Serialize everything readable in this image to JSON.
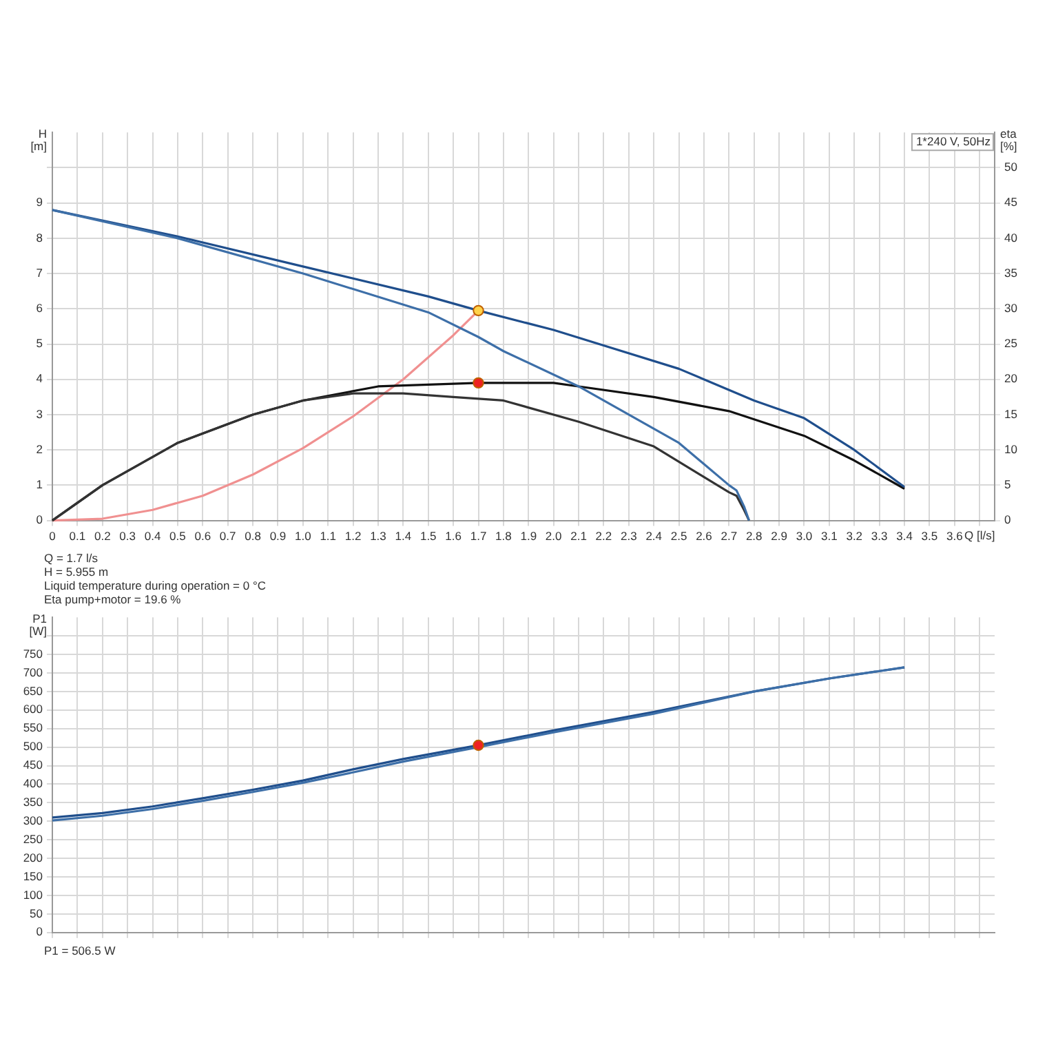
{
  "chart_data": [
    {
      "type": "line",
      "subtitle": "1*240 V, 50Hz",
      "xlabel": "Q [l/s]",
      "ylabel": "H [m]",
      "y2label": "eta [%]",
      "xlim": [
        0,
        3.76
      ],
      "xticks": [
        0,
        0.1,
        0.2,
        0.3,
        0.4,
        0.5,
        0.6,
        0.7,
        0.8,
        0.9,
        {
          "value": 1,
          "label": "1.0"
        },
        1.1,
        1.2,
        1.3,
        1.4,
        1.5,
        1.6,
        1.7,
        1.8,
        1.9,
        {
          "value": 2,
          "label": "2.0"
        },
        2.1,
        2.2,
        2.3,
        2.4,
        2.5,
        2.6,
        2.7,
        2.8,
        2.9,
        {
          "value": 3,
          "label": "3.0"
        },
        3.1,
        3.2,
        3.3,
        3.4,
        3.5,
        3.6,
        {
          "value": 3.7,
          "label": null
        }
      ],
      "ylim": [
        0,
        11
      ],
      "yticks": [
        0,
        1,
        2,
        3,
        4,
        5,
        6,
        7,
        8,
        9,
        {
          "value": 10,
          "label": null
        }
      ],
      "y2lim": [
        0,
        55
      ],
      "y2ticks": [
        0,
        5,
        10,
        15,
        20,
        25,
        30,
        35,
        40,
        45,
        50
      ],
      "grid": true,
      "legend": false,
      "line_style": "solid",
      "annotations": [
        "Q = 1.7 l/s",
        "H = 5.955 m",
        "Liquid temperature during operation = 0 °C",
        "Eta pump+motor = 19.6 %"
      ],
      "series": [
        {
          "type": "line",
          "color": "#3d6fa8",
          "x": [
            0,
            0.5,
            1.0,
            1.5,
            1.7,
            1.8,
            2.1,
            2.5,
            2.7,
            2.73,
            2.76,
            2.78
          ],
          "values": [
            8.8,
            8.0,
            7.0,
            5.9,
            5.2,
            4.8,
            3.8,
            2.2,
            1.0,
            0.85,
            0.4,
            0
          ]
        },
        {
          "type": "line",
          "color": "#1f4e8c",
          "x": [
            0,
            0.5,
            1.0,
            1.5,
            1.7,
            2.0,
            2.5,
            2.8,
            3.0,
            3.2,
            3.4
          ],
          "values": [
            8.8,
            8.05,
            7.2,
            6.35,
            5.95,
            5.4,
            4.3,
            3.4,
            2.9,
            2.0,
            0.95
          ]
        },
        {
          "type": "line",
          "axis": "y2",
          "color": "#333333",
          "x": [
            0,
            0.2,
            0.5,
            0.8,
            1.0,
            1.2,
            1.4,
            1.6,
            1.8,
            2.1,
            2.4,
            2.7,
            2.73,
            2.76,
            2.78
          ],
          "values": [
            0,
            5,
            11,
            15,
            17,
            18,
            18,
            17.5,
            17,
            14,
            10.5,
            4,
            3.5,
            1.5,
            0
          ]
        },
        {
          "type": "line",
          "axis": "y2",
          "color": "#111111",
          "x": [
            0,
            0.2,
            0.5,
            0.8,
            1.0,
            1.3,
            1.7,
            2.0,
            2.1,
            2.4,
            2.7,
            3.0,
            3.2,
            3.4
          ],
          "values": [
            0,
            5,
            11,
            15,
            17,
            19,
            19.5,
            19.5,
            19,
            17.5,
            15.5,
            12,
            8.5,
            4.5
          ]
        },
        {
          "type": "line",
          "color": "#f09090",
          "x": [
            0,
            0.2,
            0.4,
            0.6,
            0.8,
            1.0,
            1.2,
            1.4,
            1.6,
            1.7
          ],
          "values": [
            0,
            0.05,
            0.3,
            0.7,
            1.3,
            2.05,
            2.95,
            4.0,
            5.25,
            5.95
          ]
        },
        {
          "type": "scatter",
          "marker": "circle",
          "color": "#ffd24a",
          "x": [
            1.7
          ],
          "values": [
            5.95
          ]
        },
        {
          "type": "scatter",
          "marker": "circle",
          "axis": "y2",
          "color": "#ee2222",
          "x": [
            1.7
          ],
          "values": [
            19.5
          ]
        }
      ]
    },
    {
      "type": "line",
      "ylabel": "P1 [W]",
      "tick_labels": "y",
      "xlim": [
        0,
        3.76
      ],
      "xticks": [
        0,
        0.1,
        0.2,
        0.3,
        0.4,
        0.5,
        0.6,
        0.7,
        0.8,
        0.9,
        1,
        1.1,
        1.2,
        1.3,
        1.4,
        1.5,
        1.6,
        1.7,
        1.8,
        1.9,
        2,
        2.1,
        2.2,
        2.3,
        2.4,
        2.5,
        2.6,
        2.7,
        2.8,
        2.9,
        3,
        3.1,
        3.2,
        3.3,
        3.4,
        3.5,
        3.6,
        3.7
      ],
      "ylim": [
        0,
        850
      ],
      "yticks": [
        0,
        50,
        100,
        150,
        200,
        250,
        300,
        350,
        400,
        450,
        500,
        550,
        600,
        650,
        700,
        750,
        {
          "value": 800,
          "label": null
        }
      ],
      "grid": true,
      "legend": false,
      "line_style": "solid",
      "annotations": [
        "P1 = 506.5 W"
      ],
      "series": [
        {
          "type": "line",
          "color": "#3d6fa8",
          "x": [
            0,
            0.2,
            0.4,
            0.6,
            0.8,
            1.0,
            1.2,
            1.4,
            1.7,
            2.0,
            2.4,
            2.8,
            3.1,
            3.4
          ],
          "values": [
            302,
            315,
            333,
            355,
            379,
            404,
            432,
            461,
            500,
            540,
            590,
            650,
            685,
            715
          ]
        },
        {
          "type": "line",
          "color": "#1f4e8c",
          "x": [
            0,
            0.2,
            0.4,
            0.6,
            0.8,
            1.0,
            1.2,
            1.4,
            1.7,
            2.0,
            2.4,
            2.8,
            3.1,
            3.4
          ],
          "values": [
            310,
            322,
            340,
            362,
            385,
            410,
            440,
            468,
            505,
            545,
            595,
            650,
            685,
            715
          ]
        },
        {
          "type": "scatter",
          "marker": "circle",
          "color": "#ee2222",
          "x": [
            1.7
          ],
          "values": [
            505
          ]
        }
      ]
    }
  ]
}
